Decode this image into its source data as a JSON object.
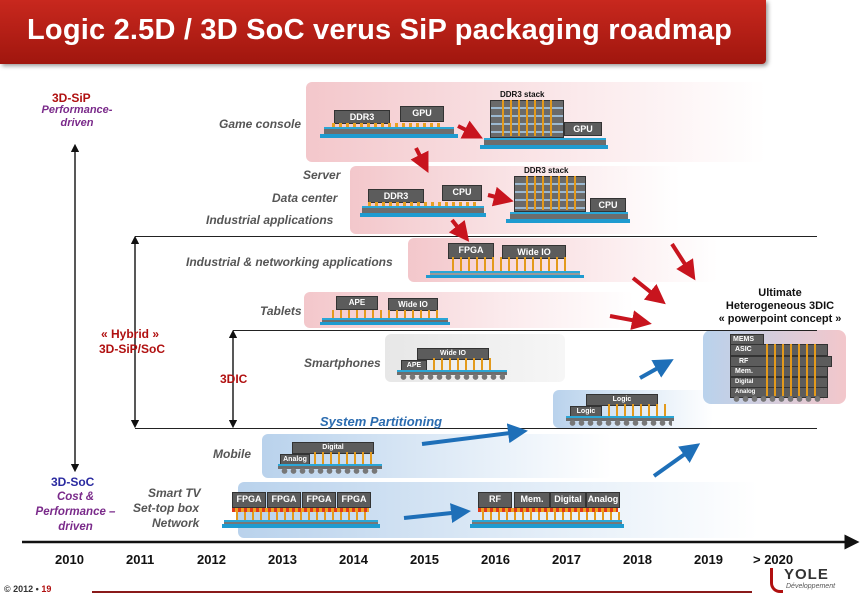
{
  "title": "Logic 2.5D / 3D SoC verus SiP packaging roadmap",
  "axis_labels": {
    "top_title": "3D-SiP",
    "top_sub": "Performance-driven",
    "hybrid_title": "« Hybrid »",
    "hybrid_sub": "3D-SiP/SoC",
    "tdic": "3DIC",
    "bottom_title": "3D-SoC",
    "bottom_sub": "Cost & Performance – driven"
  },
  "applications": {
    "game_console": "Game console",
    "server": "Server",
    "data_center": "Data center",
    "industrial": "Industrial applications",
    "ind_net": "Industrial  & networking applications",
    "tablets": "Tablets",
    "smartphones": "Smartphones",
    "mobile": "Mobile",
    "tv": "Smart TV",
    "stb": "Set-top box",
    "network": "Network"
  },
  "system_partitioning": "System Partitioning",
  "ultimate": {
    "line1": "Ultimate",
    "line2": "Heterogeneous 3DIC",
    "line3": "« powerpoint concept »",
    "layers": [
      "MEMS",
      "ASIC",
      "RF",
      "Mem.",
      "Digital",
      "Analog"
    ]
  },
  "chips": {
    "ddr3": "DDR3",
    "gpu": "GPU",
    "ddr3_stack": "DDR3 stack",
    "cpu": "CPU",
    "fpga": "FPGA",
    "wide_io": "Wide IO",
    "ape": "APE",
    "logic": "Logic",
    "digital": "Digital",
    "analog": "Analog",
    "rf": "RF",
    "mem": "Mem."
  },
  "years": [
    "2010",
    "2011",
    "2012",
    "2013",
    "2014",
    "2015",
    "2016",
    "2017",
    "2018",
    "2019",
    "> 2020"
  ],
  "footer": {
    "copyright": "© 2012 •",
    "page": "19",
    "logo": "YOLE",
    "logo_sub": "Développement"
  },
  "colors": {
    "title_red": "#b21a12",
    "band_red": "#f3c7cb",
    "band_blue": "#b9d2ec",
    "arrow_red": "#c8141e",
    "arrow_blue": "#1e6fb8",
    "substrate_blue": "#1f9bd0"
  }
}
